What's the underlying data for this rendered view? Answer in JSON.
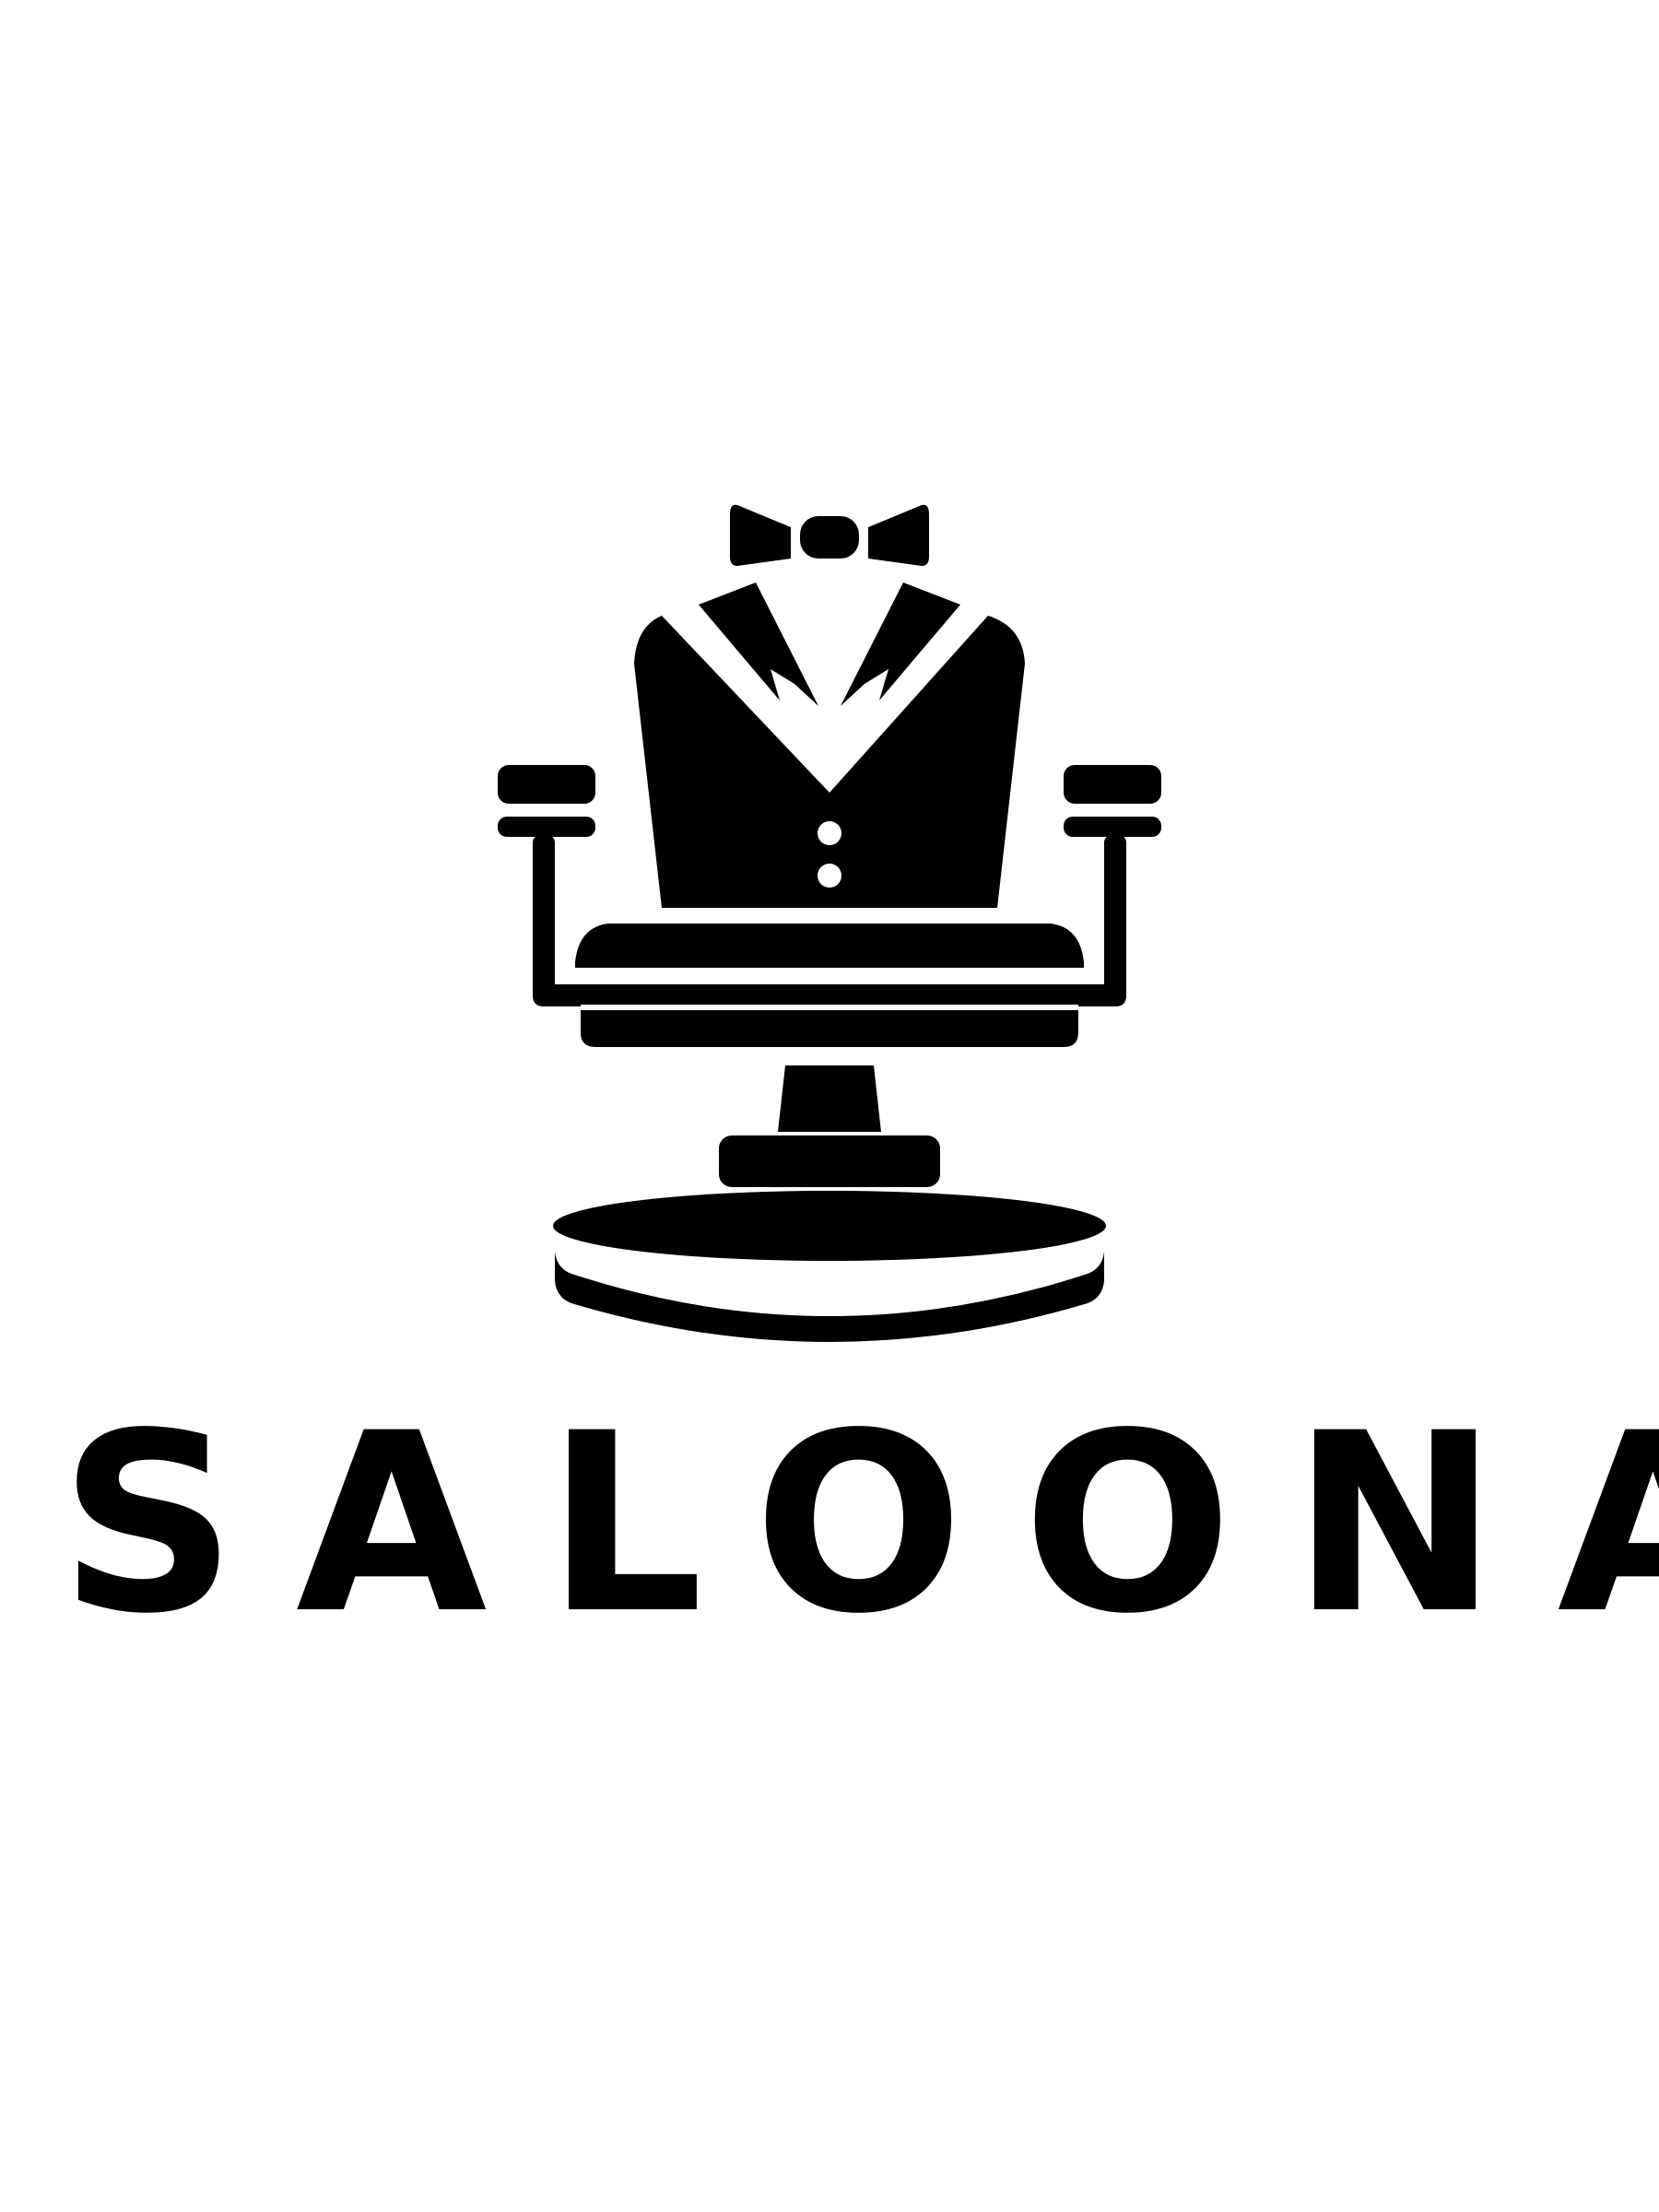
{
  "logo": {
    "icon": "barber-chair-tuxedo-icon",
    "wordmark": "SALOONA",
    "colors": {
      "ink": "#000000",
      "background": "#ffffff"
    }
  }
}
